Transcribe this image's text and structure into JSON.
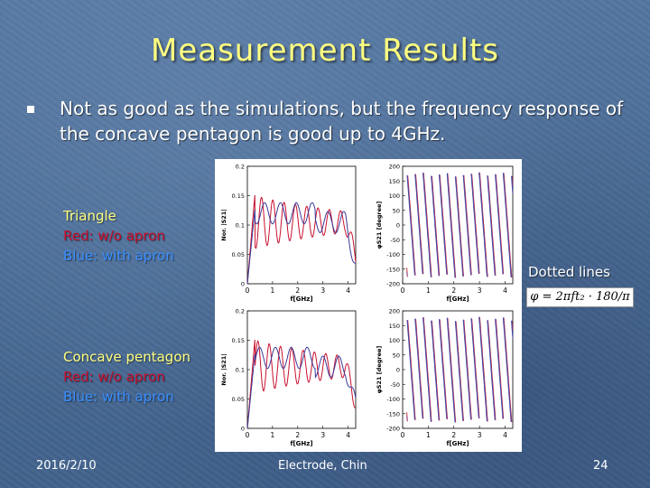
{
  "slide": {
    "title": "Measurement Results",
    "bullet": "Not as good as the simulations, but the frequency response of the concave pentagon is good up to 4GHz.",
    "label_top": {
      "line1": "Triangle",
      "line2": "Red: w/o apron",
      "line3": "Blue: with apron"
    },
    "label_bottom": {
      "line1": "Concave pentagon",
      "line2": "Red: w/o apron",
      "line3": "Blue: with apron"
    },
    "dotted_note": "Dotted lines",
    "formula": "φ = 2πft₂ · 180/π",
    "footer": {
      "date": "2016/2/10",
      "center": "Electrode, Chin",
      "page": "24"
    }
  },
  "colors": {
    "title": "#ffff80",
    "red_series": "#c8102e",
    "blue_series": "#3a3a9a",
    "dotted": "#4060c0"
  },
  "chart_data": [
    {
      "type": "line",
      "name": "Triangle magnitude",
      "xlabel": "f[GHz]",
      "ylabel": "Nor. |S21|",
      "xlim": [
        0,
        4.3
      ],
      "ylim": [
        0,
        0.2
      ],
      "xticks": [
        "0",
        "1",
        "2",
        "3",
        "4"
      ],
      "yticks": [
        "0",
        "0.05",
        "0.1",
        "0.15",
        "0.2"
      ],
      "series": [
        {
          "name": "Red: w/o apron"
        },
        {
          "name": "Blue: with apron"
        }
      ]
    },
    {
      "type": "line",
      "name": "Triangle phase",
      "xlabel": "f[GHz]",
      "ylabel": "φS21 [degree]",
      "xlim": [
        0,
        4.3
      ],
      "ylim": [
        -200,
        200
      ],
      "xticks": [
        "0",
        "1",
        "2",
        "3",
        "4"
      ],
      "yticks": [
        "-200",
        "-150",
        "-100",
        "-50",
        "0",
        "50",
        "100",
        "150",
        "200"
      ],
      "series": [
        {
          "name": "Red: w/o apron"
        },
        {
          "name": "Blue: with apron"
        },
        {
          "name": "Dotted lines"
        }
      ]
    },
    {
      "type": "line",
      "name": "Concave pentagon magnitude",
      "xlabel": "f[GHz]",
      "ylabel": "Nor. |S21|",
      "xlim": [
        0,
        4.3
      ],
      "ylim": [
        0,
        0.2
      ],
      "xticks": [
        "0",
        "1",
        "2",
        "3",
        "4"
      ],
      "yticks": [
        "0",
        "0.05",
        "0.1",
        "0.15",
        "0.2"
      ],
      "series": [
        {
          "name": "Red: w/o apron"
        },
        {
          "name": "Blue: with apron"
        }
      ]
    },
    {
      "type": "line",
      "name": "Concave pentagon phase",
      "xlabel": "f[GHz]",
      "ylabel": "φS21 [degree]",
      "xlim": [
        0,
        4.3
      ],
      "ylim": [
        -200,
        200
      ],
      "xticks": [
        "0",
        "1",
        "2",
        "3",
        "4"
      ],
      "yticks": [
        "-200",
        "-150",
        "-100",
        "-50",
        "0",
        "50",
        "100",
        "150",
        "200"
      ],
      "series": [
        {
          "name": "Red: w/o apron"
        },
        {
          "name": "Blue: with apron"
        },
        {
          "name": "Dotted lines"
        }
      ]
    }
  ]
}
